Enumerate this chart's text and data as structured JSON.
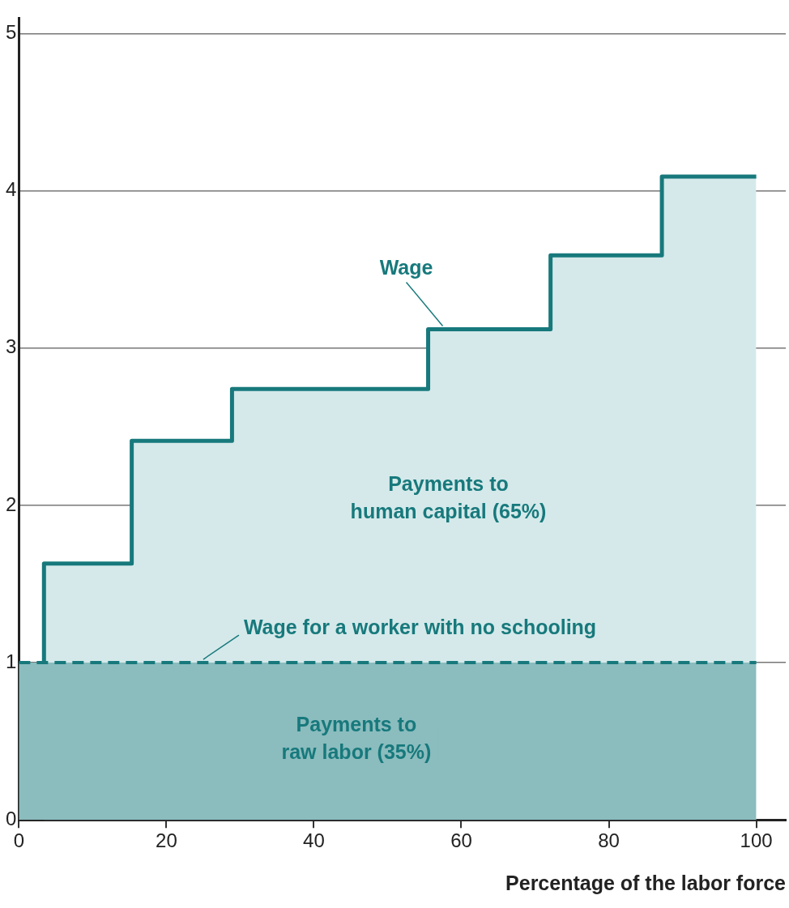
{
  "chart_data": {
    "type": "step",
    "xlabel": "Percentage of the labor force",
    "xlim": [
      0,
      104
    ],
    "xticks": [
      0,
      20,
      40,
      60,
      80,
      100
    ],
    "ylim": [
      0,
      5.1
    ],
    "yticks": [
      0,
      1,
      2,
      3,
      4,
      5
    ],
    "grid": "y",
    "legend": false,
    "series": [
      {
        "name": "Wage",
        "type": "step",
        "color": "#17797c",
        "x": [
          3.4,
          3.4,
          15.3,
          28.9,
          55.5,
          72.1,
          87.2,
          100
        ],
        "values": [
          1,
          1.63,
          2.41,
          2.74,
          3.12,
          3.59,
          4.09,
          4.09
        ]
      },
      {
        "type": "area",
        "color": "#d5e9ea",
        "x": [
          3.4,
          3.4,
          15.3,
          28.9,
          55.5,
          72.1,
          87.2,
          100
        ],
        "values": [
          1,
          1.63,
          2.41,
          2.74,
          3.12,
          3.59,
          4.09,
          4.09
        ]
      },
      {
        "name": "Wage for a worker with no schooling",
        "type": "area",
        "color": "#17797c",
        "line_style": "dashed",
        "x": [
          0,
          100
        ],
        "values": [
          1,
          1
        ]
      }
    ],
    "annotations": [
      "Payments to\nhuman capital (65%)",
      "Payments to\nraw labor (35%)"
    ]
  }
}
